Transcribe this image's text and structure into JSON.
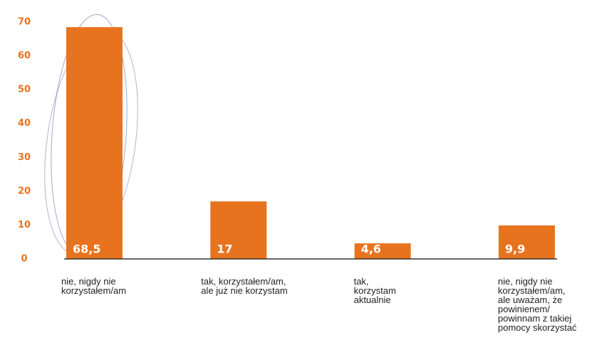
{
  "chart_data": {
    "type": "bar",
    "categories": [
      "nie, nigdy nie\nkorzystałem/am",
      "tak, korzystałem/am,\nale już nie korzystam",
      "tak,\nkorzystam\naktualnie",
      "nie, nigdy nie\nkorzystałem/am,\nale uważam, że\npowinienem/\npowinnam z takiej\npomocy skorzystać"
    ],
    "values": [
      68.5,
      17,
      4.6,
      9.9
    ],
    "value_labels": [
      "68,5",
      "17",
      "4,6",
      "9,9"
    ],
    "color": "#e8731f",
    "ylim": [
      0,
      70
    ],
    "yticks": [
      0,
      10,
      20,
      30,
      40,
      50,
      60,
      70
    ],
    "grid": false
  }
}
